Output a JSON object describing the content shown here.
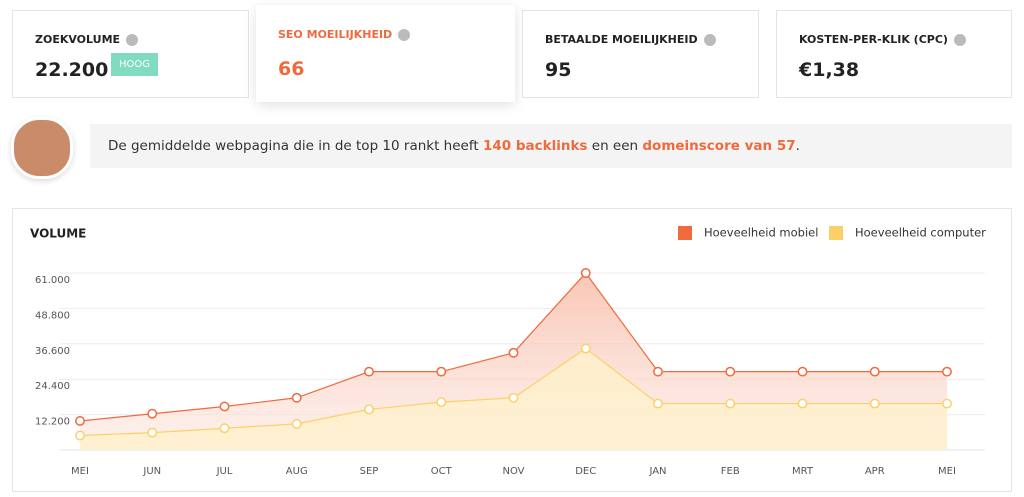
{
  "cards": [
    {
      "title": "ZOEKVOLUME",
      "value": "22.200",
      "badge": "HOOG"
    },
    {
      "title": "SEO MOEILIJKHEID",
      "value": "66"
    },
    {
      "title": "BETAALDE MOEILIJKHEID",
      "value": "95"
    },
    {
      "title": "KOSTEN-PER-KLIK (CPC)",
      "value": "€1,38"
    }
  ],
  "banner": {
    "parts": [
      "De gemiddelde webpagina die in de top 10 rankt heeft ",
      "140 backlinks",
      " en een ",
      "domeinscore van 57",
      "."
    ]
  },
  "chart_data": {
    "type": "line",
    "title": "VOLUME",
    "categories": [
      "MEI",
      "JUN",
      "JUL",
      "AUG",
      "SEP",
      "OCT",
      "NOV",
      "DEC",
      "JAN",
      "FEB",
      "MRT",
      "APR",
      "MEI"
    ],
    "series": [
      {
        "name": "Hoeveelheid mobiel",
        "color": "#ef6a3d",
        "values": [
          10000,
          12500,
          15000,
          18000,
          27000,
          27000,
          33500,
          61000,
          27000,
          27000,
          27000,
          27000,
          27000
        ]
      },
      {
        "name": "Hoeveelheid computer",
        "color": "#fdd067",
        "values": [
          5000,
          6000,
          7500,
          9000,
          14000,
          16500,
          18000,
          35000,
          16000,
          16000,
          16000,
          16000,
          16000
        ]
      }
    ],
    "ylim": [
      0,
      61000
    ],
    "yticks": [
      {
        "value": 12200,
        "label": "12.200"
      },
      {
        "value": 24400,
        "label": "24.400"
      },
      {
        "value": 36600,
        "label": "36.600"
      },
      {
        "value": 48800,
        "label": "48.800"
      },
      {
        "value": 61000,
        "label": "61.000"
      }
    ],
    "grid": true,
    "legend": "top-right"
  }
}
